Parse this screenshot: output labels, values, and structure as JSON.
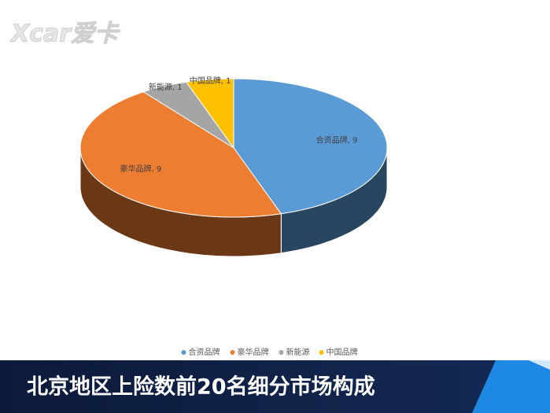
{
  "watermark": "Xcar爱卡",
  "chart_data": {
    "type": "pie",
    "title": "北京地区上险数前20名细分市场构成",
    "categories": [
      "合资品牌",
      "豪华品牌",
      "新能源",
      "中国品牌"
    ],
    "values": [
      9,
      9,
      1,
      1
    ],
    "value_labels": [
      "合资品牌, 9",
      "豪华品牌, 9",
      "新能源, 1",
      "中国品牌, 1"
    ],
    "colors": [
      "#5b9bd5",
      "#ed7d31",
      "#a5a5a5",
      "#ffc000"
    ],
    "legend": "bottom"
  }
}
